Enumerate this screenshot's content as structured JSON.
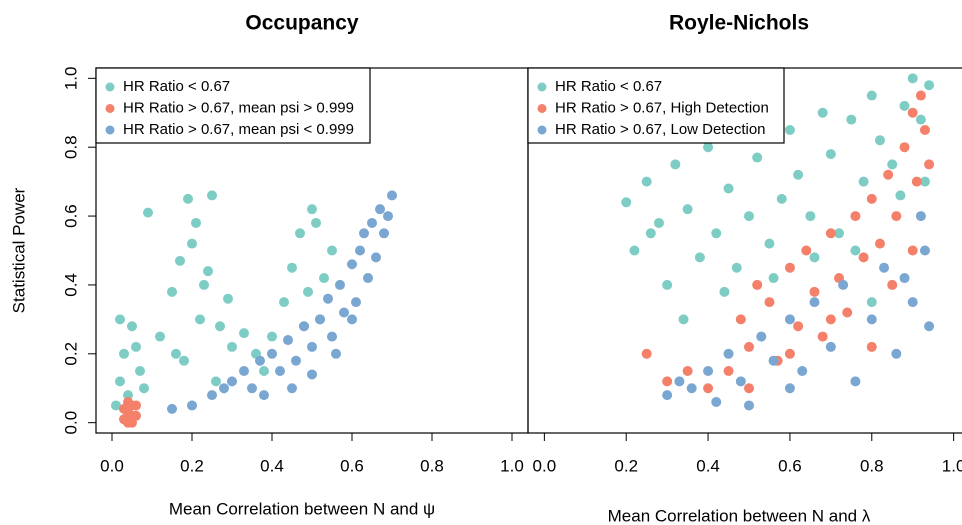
{
  "chart_data": [
    {
      "type": "scatter",
      "title": "Occupancy",
      "xlabel": "Mean Correlation between N and ψ",
      "ylabel": "Statistical Power",
      "xlim": [
        -0.04,
        1.04
      ],
      "ylim": [
        -0.03,
        1.03
      ],
      "xticks": [
        {
          "value": 0,
          "label": "0.0"
        },
        0.2,
        0.4,
        0.6,
        0.8,
        {
          "value": 1,
          "label": "1.0"
        }
      ],
      "yticks": [
        {
          "value": 0,
          "label": "0.0"
        },
        0.2,
        0.4,
        0.6,
        0.8,
        {
          "value": 1,
          "label": "1.0"
        }
      ],
      "legend": "top-left",
      "series": [
        {
          "name": "HR Ratio < 0.67",
          "color": "#7ecdc4",
          "x": [
            0.01,
            0.02,
            0.03,
            0.05,
            0.07,
            0.09,
            0.02,
            0.04,
            0.06,
            0.08,
            0.12,
            0.15,
            0.17,
            0.19,
            0.2,
            0.22,
            0.24,
            0.25,
            0.27,
            0.29,
            0.18,
            0.21,
            0.23,
            0.3,
            0.33,
            0.36,
            0.4,
            0.43,
            0.45,
            0.47,
            0.49,
            0.5,
            0.52,
            0.53,
            0.55,
            0.48,
            0.51,
            0.38,
            0.26,
            0.16
          ],
          "values": [
            0.05,
            0.12,
            0.2,
            0.28,
            0.15,
            0.61,
            0.3,
            0.08,
            0.22,
            0.1,
            0.25,
            0.38,
            0.47,
            0.65,
            0.52,
            0.3,
            0.44,
            0.66,
            0.28,
            0.36,
            0.18,
            0.58,
            0.4,
            0.22,
            0.26,
            0.2,
            0.25,
            0.35,
            0.45,
            0.55,
            0.38,
            0.62,
            0.3,
            0.42,
            0.5,
            0.28,
            0.58,
            0.15,
            0.12,
            0.2
          ]
        },
        {
          "name": "HR Ratio > 0.67, mean psi > 0.999",
          "color": "#f4806a",
          "x": [
            0.03,
            0.04,
            0.05,
            0.06,
            0.04,
            0.05,
            0.03,
            0.06,
            0.05,
            0.04
          ],
          "values": [
            0.01,
            0.03,
            0.05,
            0.02,
            0.06,
            0.0,
            0.04,
            0.05,
            0.02,
            0.0
          ]
        },
        {
          "name": "HR Ratio > 0.67, mean psi < 0.999",
          "color": "#7aa6d2",
          "x": [
            0.15,
            0.2,
            0.25,
            0.28,
            0.3,
            0.33,
            0.35,
            0.37,
            0.4,
            0.42,
            0.44,
            0.46,
            0.48,
            0.5,
            0.52,
            0.54,
            0.55,
            0.57,
            0.58,
            0.6,
            0.61,
            0.62,
            0.63,
            0.64,
            0.65,
            0.66,
            0.67,
            0.68,
            0.69,
            0.7,
            0.45,
            0.5,
            0.56,
            0.6,
            0.38
          ],
          "values": [
            0.04,
            0.05,
            0.08,
            0.1,
            0.12,
            0.15,
            0.1,
            0.18,
            0.2,
            0.15,
            0.24,
            0.18,
            0.28,
            0.22,
            0.3,
            0.36,
            0.25,
            0.4,
            0.32,
            0.46,
            0.35,
            0.5,
            0.55,
            0.42,
            0.58,
            0.48,
            0.62,
            0.55,
            0.6,
            0.66,
            0.1,
            0.14,
            0.2,
            0.3,
            0.08
          ]
        }
      ]
    },
    {
      "type": "scatter",
      "title": "Royle-Nichols",
      "xlabel": "Mean Correlation between N and λ",
      "xlim": [
        -0.04,
        1.04
      ],
      "ylim": [
        -0.03,
        1.03
      ],
      "xticks": [
        {
          "value": 0,
          "label": "0.0"
        },
        0.2,
        0.4,
        0.6,
        0.8,
        {
          "value": 1,
          "label": "1.0"
        }
      ],
      "legend": "top-left",
      "series": [
        {
          "name": "HR Ratio < 0.67",
          "color": "#7ecdc4",
          "x": [
            0.2,
            0.22,
            0.25,
            0.28,
            0.3,
            0.32,
            0.35,
            0.38,
            0.4,
            0.42,
            0.45,
            0.47,
            0.5,
            0.52,
            0.55,
            0.58,
            0.6,
            0.62,
            0.65,
            0.68,
            0.7,
            0.72,
            0.75,
            0.78,
            0.8,
            0.82,
            0.85,
            0.88,
            0.9,
            0.92,
            0.94,
            0.93,
            0.87,
            0.76,
            0.34,
            0.44,
            0.56,
            0.26,
            0.66,
            0.8
          ],
          "values": [
            0.64,
            0.5,
            0.7,
            0.58,
            0.4,
            0.75,
            0.62,
            0.48,
            0.8,
            0.55,
            0.68,
            0.45,
            0.6,
            0.77,
            0.52,
            0.65,
            0.85,
            0.72,
            0.6,
            0.9,
            0.78,
            0.55,
            0.88,
            0.7,
            0.95,
            0.82,
            0.75,
            0.92,
            1.0,
            0.88,
            0.98,
            0.7,
            0.66,
            0.5,
            0.3,
            0.38,
            0.42,
            0.55,
            0.48,
            0.35
          ]
        },
        {
          "name": "HR Ratio > 0.67, High Detection",
          "color": "#f4806a",
          "x": [
            0.45,
            0.48,
            0.5,
            0.52,
            0.55,
            0.57,
            0.6,
            0.62,
            0.64,
            0.66,
            0.68,
            0.7,
            0.72,
            0.74,
            0.76,
            0.78,
            0.8,
            0.82,
            0.84,
            0.86,
            0.88,
            0.9,
            0.91,
            0.92,
            0.93,
            0.94,
            0.25,
            0.3,
            0.35,
            0.4,
            0.6,
            0.7,
            0.85,
            0.9,
            0.5,
            0.8
          ],
          "values": [
            0.15,
            0.3,
            0.22,
            0.4,
            0.35,
            0.18,
            0.45,
            0.28,
            0.5,
            0.38,
            0.25,
            0.55,
            0.42,
            0.32,
            0.6,
            0.48,
            0.65,
            0.52,
            0.72,
            0.6,
            0.8,
            0.9,
            0.7,
            0.95,
            0.85,
            0.75,
            0.2,
            0.12,
            0.15,
            0.1,
            0.2,
            0.3,
            0.4,
            0.5,
            0.1,
            0.22
          ]
        },
        {
          "name": "HR Ratio > 0.67, Low Detection",
          "color": "#7aa6d2",
          "x": [
            0.3,
            0.33,
            0.36,
            0.4,
            0.42,
            0.45,
            0.48,
            0.5,
            0.53,
            0.56,
            0.6,
            0.63,
            0.66,
            0.7,
            0.73,
            0.76,
            0.8,
            0.83,
            0.86,
            0.9,
            0.93,
            0.94,
            0.92,
            0.88,
            0.6
          ],
          "values": [
            0.08,
            0.12,
            0.1,
            0.15,
            0.06,
            0.2,
            0.12,
            0.05,
            0.25,
            0.18,
            0.3,
            0.15,
            0.35,
            0.22,
            0.4,
            0.12,
            0.3,
            0.45,
            0.2,
            0.35,
            0.5,
            0.28,
            0.6,
            0.42,
            0.1
          ]
        }
      ]
    }
  ]
}
